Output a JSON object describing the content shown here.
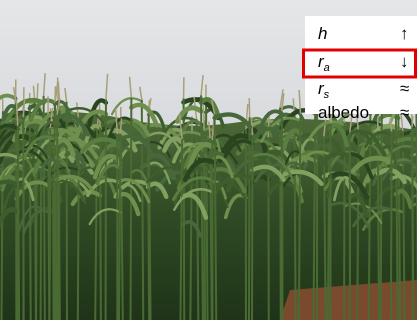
{
  "legend": {
    "rows": [
      {
        "symbol": "h",
        "arrow": "↑"
      },
      {
        "symbol": "r",
        "subscript": "a",
        "arrow": "↓",
        "highlighted": true
      },
      {
        "symbol": "r",
        "subscript": "s",
        "arrow": "≈"
      },
      {
        "symbol": "albedo",
        "arrow": "≈"
      }
    ]
  }
}
